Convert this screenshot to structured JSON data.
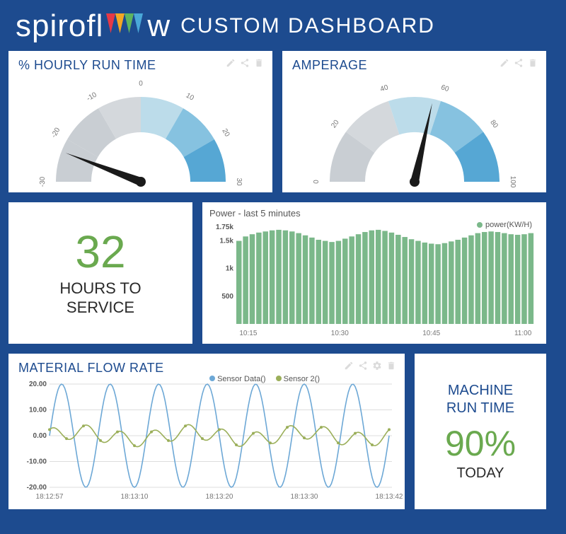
{
  "header": {
    "logo_part1": "spirofl",
    "logo_part2": "w",
    "title": "CUSTOM DASHBOARD",
    "triangle_colors": [
      "#e63946",
      "#f4a723",
      "#5fb55f",
      "#4aa8d8"
    ]
  },
  "gauge_runtime": {
    "title": "% HOURLY RUN TIME",
    "min": -30,
    "max": 30,
    "value": -23,
    "ticks": [
      "-30",
      "-20",
      "-10",
      "0",
      "10",
      "20",
      "30"
    ],
    "segment_colors": [
      "#c9ced3",
      "#c9ced3",
      "#d4d8dc",
      "#bcdcea",
      "#86c2e0",
      "#56a7d4"
    ],
    "needle_color": "#1a1a1a"
  },
  "gauge_amperage": {
    "title": "AMPERAGE",
    "min": 0,
    "max": 100,
    "value": 57,
    "ticks": [
      "0",
      "20",
      "40",
      "60",
      "80",
      "100"
    ],
    "segment_colors": [
      "#c9ced3",
      "#d4d8dc",
      "#bcdcea",
      "#86c2e0",
      "#56a7d4"
    ],
    "needle_color": "#1a1a1a"
  },
  "service": {
    "value": "32",
    "label_line1": "HOURS TO",
    "label_line2": "SERVICE"
  },
  "power": {
    "title": "Power - last 5 minutes",
    "legend_label": "power(KW/H)",
    "legend_color": "#7bb88a",
    "bar_color": "#7bb88a",
    "ymax": 1750,
    "y_ticks": [
      "1.75k",
      "1.5k",
      "1k",
      "500"
    ],
    "x_ticks": [
      "10:15",
      "10:30",
      "10:45",
      "11:00"
    ],
    "values": [
      1500,
      1580,
      1620,
      1650,
      1670,
      1690,
      1700,
      1690,
      1670,
      1640,
      1600,
      1560,
      1520,
      1500,
      1480,
      1500,
      1540,
      1580,
      1620,
      1660,
      1690,
      1700,
      1680,
      1650,
      1610,
      1570,
      1530,
      1500,
      1470,
      1450,
      1440,
      1460,
      1490,
      1520,
      1560,
      1600,
      1640,
      1660,
      1670,
      1660,
      1640,
      1620,
      1610,
      1620,
      1640
    ]
  },
  "flow": {
    "title": "MATERIAL FLOW RATE",
    "legend1_label": "Sensor Data()",
    "legend1_color": "#6da8d6",
    "legend2_label": "Sensor 2()",
    "legend2_color": "#9baf5a",
    "y_ticks": [
      "20.00",
      "10.00",
      "0.00",
      "-10.00",
      "-20.00"
    ],
    "x_ticks": [
      "18:12:57",
      "18:13:10",
      "18:13:20",
      "18:13:30",
      "18:13:42"
    ],
    "s1_amp": 20,
    "s1_periods": 7,
    "s2_amp": 4
  },
  "runtime": {
    "label_line1": "MACHINE",
    "label_line2": "RUN TIME",
    "percent": "90%",
    "today": "TODAY"
  },
  "icons": {
    "edit": "edit-icon",
    "share": "share-icon",
    "trash": "trash-icon",
    "gear": "gear-icon"
  }
}
